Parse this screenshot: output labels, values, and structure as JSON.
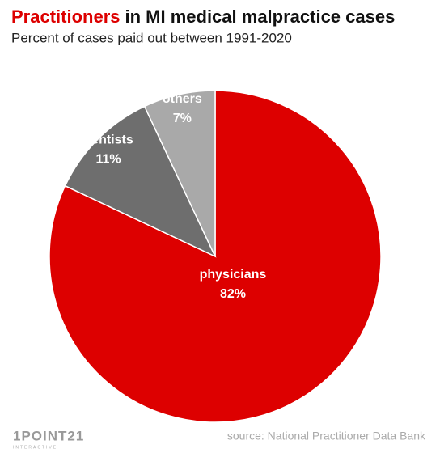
{
  "chart_data": {
    "type": "pie",
    "title_highlight": "Practitioners",
    "title_rest": "in MI medical malpractice cases",
    "subtitle": "Percent of cases paid out between 1991-2020",
    "categories": [
      "physicians",
      "dentists",
      "others"
    ],
    "values": [
      82,
      11,
      7
    ],
    "value_labels": [
      "82%",
      "11%",
      "7%"
    ],
    "colors": [
      "#dd0000",
      "#6e6e6e",
      "#a9a9a9"
    ],
    "title_highlight_color": "#dd0000",
    "source": "source: National Practitioner Data Bank",
    "logo": "1POINT21",
    "logo_sub": "INTERACTIVE"
  }
}
